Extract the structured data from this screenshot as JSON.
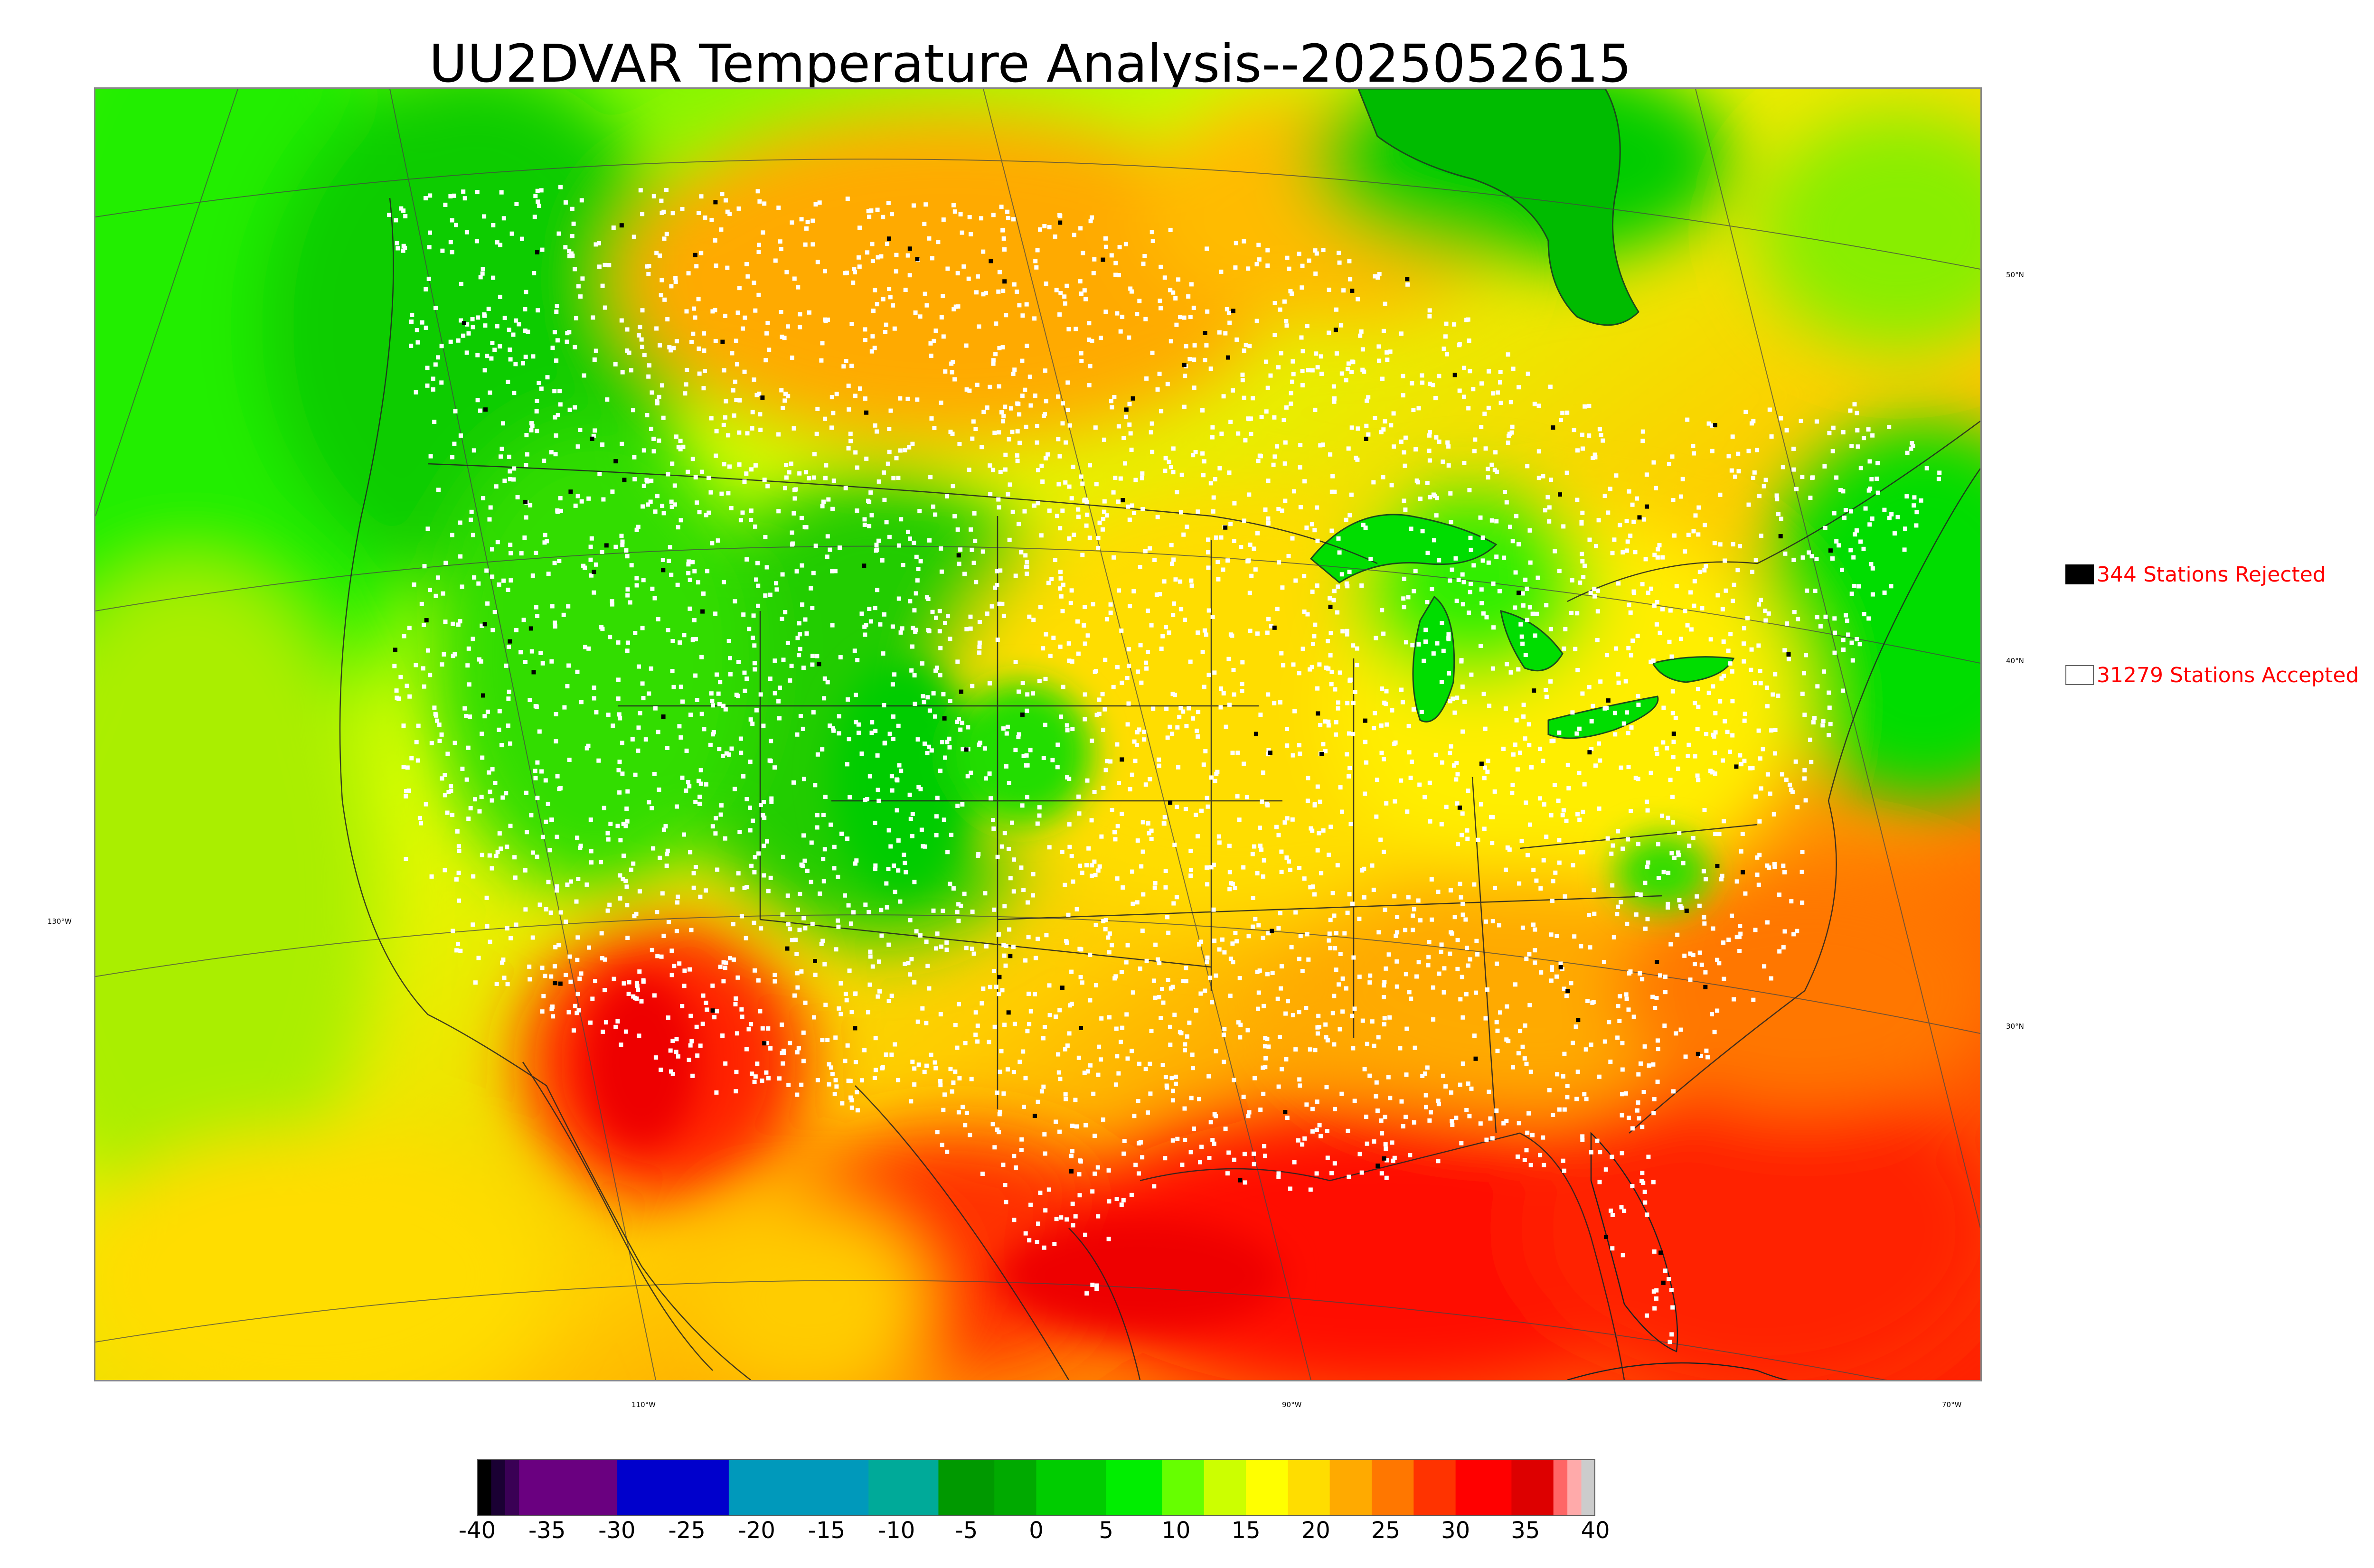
{
  "title": "UU2DVAR Temperature Analysis--2025052615",
  "legend": {
    "rejected": {
      "label": "344 Stations Rejected",
      "swatch_color": "#000000"
    },
    "accepted": {
      "label": "31279 Stations Accepted",
      "swatch_color": "#ffffff"
    }
  },
  "graticule": {
    "lat_labels": [
      "50°N",
      "40°N",
      "30°N"
    ],
    "lon_labels": [
      "130°W",
      "110°W",
      "90°W",
      "70°W"
    ]
  },
  "colorbar": {
    "min": -40,
    "max": 40,
    "ticks": [
      "-40",
      "-35",
      "-30",
      "-25",
      "-20",
      "-15",
      "-10",
      "-5",
      "0",
      "5",
      "10",
      "15",
      "20",
      "25",
      "30",
      "35",
      "40"
    ],
    "bands": [
      {
        "from": -40,
        "to": -39,
        "color": "#000000"
      },
      {
        "from": -39,
        "to": -38,
        "color": "#1a0033"
      },
      {
        "from": -38,
        "to": -37,
        "color": "#3a0055"
      },
      {
        "from": -37,
        "to": -30,
        "color": "#6a0080"
      },
      {
        "from": -30,
        "to": -22,
        "color": "#0000cc"
      },
      {
        "from": -22,
        "to": -12,
        "color": "#0099bb"
      },
      {
        "from": -12,
        "to": -7,
        "color": "#00aa99"
      },
      {
        "from": -7,
        "to": -3,
        "color": "#009900"
      },
      {
        "from": -3,
        "to": 0,
        "color": "#00aa00"
      },
      {
        "from": 0,
        "to": 5,
        "color": "#00cc00"
      },
      {
        "from": 5,
        "to": 9,
        "color": "#00ee00"
      },
      {
        "from": 9,
        "to": 12,
        "color": "#66ff00"
      },
      {
        "from": 12,
        "to": 15,
        "color": "#ccff00"
      },
      {
        "from": 15,
        "to": 18,
        "color": "#ffff00"
      },
      {
        "from": 18,
        "to": 21,
        "color": "#ffdd00"
      },
      {
        "from": 21,
        "to": 24,
        "color": "#ffaa00"
      },
      {
        "from": 24,
        "to": 27,
        "color": "#ff7700"
      },
      {
        "from": 27,
        "to": 30,
        "color": "#ff3300"
      },
      {
        "from": 30,
        "to": 34,
        "color": "#ff0000"
      },
      {
        "from": 34,
        "to": 37,
        "color": "#dd0000"
      },
      {
        "from": 37,
        "to": 38,
        "color": "#ff6666"
      },
      {
        "from": 38,
        "to": 39,
        "color": "#ffaaaa"
      },
      {
        "from": 39,
        "to": 40,
        "color": "#cccccc"
      }
    ]
  },
  "colors": {
    "cold_land": "#00dd00",
    "cool": "#99ee00",
    "mild": "#ffee00",
    "warm": "#ffaa00",
    "hot": "#ff1100",
    "station_accepted": "#ffffff",
    "station_rejected": "#000000"
  }
}
